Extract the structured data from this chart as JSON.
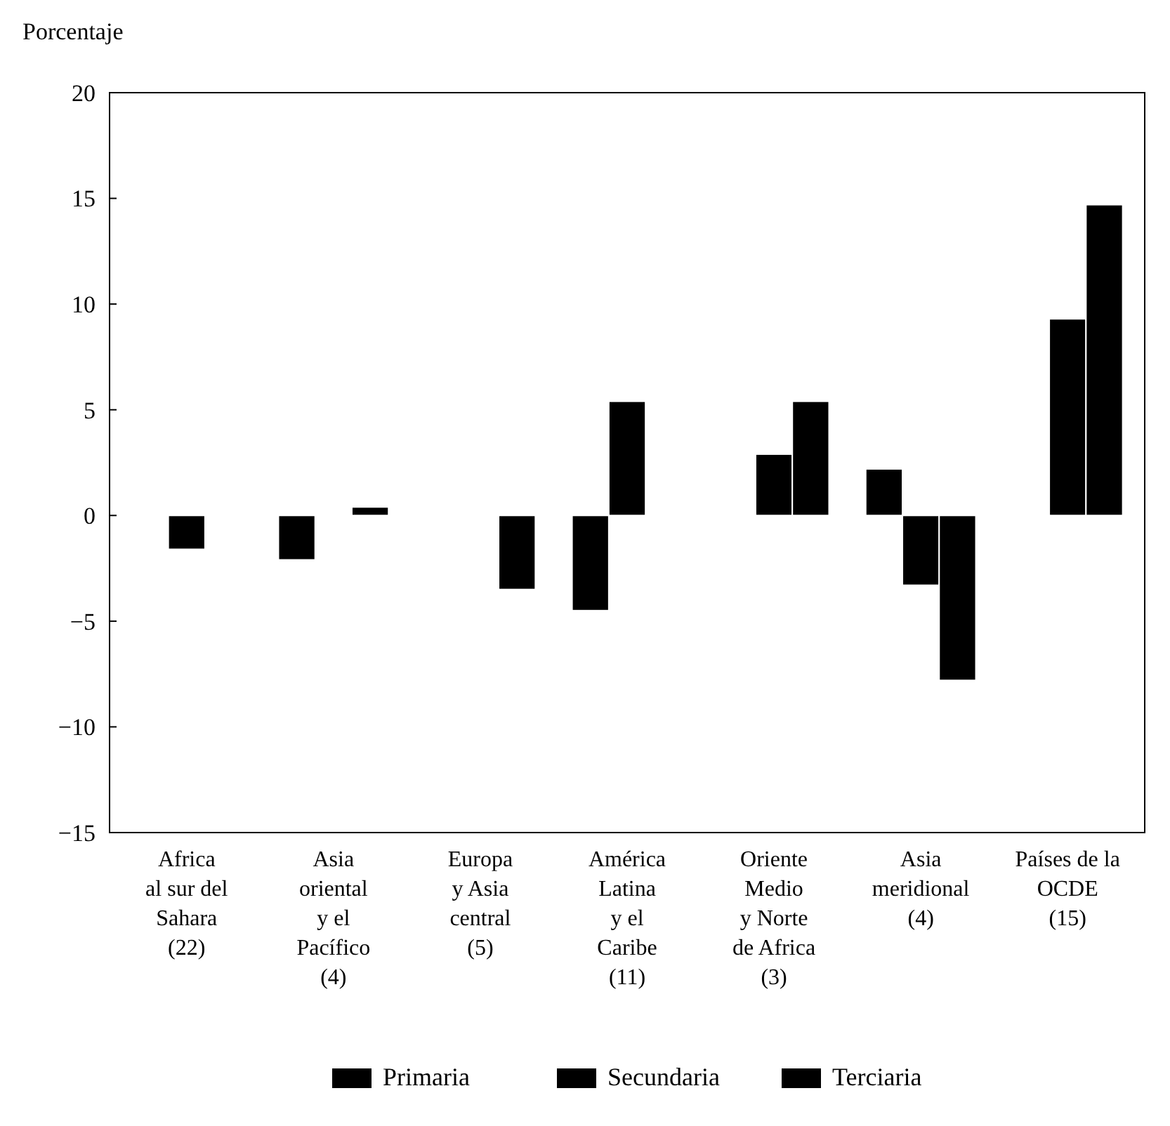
{
  "chart_data": {
    "type": "bar",
    "ylabel": "Porcentaje",
    "categories": [
      "Africa\nal sur del\nSahara\n(22)",
      "Asia\noriental\ny el\nPacífico\n(4)",
      "Europa\ny Asia\ncentral\n(5)",
      "América\nLatina\ny el\nCaribe\n(11)",
      "Oriente\nMedio\ny Norte\nde Africa\n(3)",
      "Asia\nmeridional\n(4)",
      "Países de la\nOCDE\n(15)"
    ],
    "series": [
      {
        "name": "Primaria",
        "color": "#000000",
        "values": [
          null,
          -2.1,
          null,
          -4.5,
          null,
          2.2,
          null
        ]
      },
      {
        "name": "Secundaria",
        "color": "#000000",
        "values": [
          -1.6,
          null,
          null,
          5.4,
          2.9,
          -3.3,
          9.3
        ]
      },
      {
        "name": "Terciaria",
        "color": "#000000",
        "values": [
          null,
          0.4,
          -3.5,
          null,
          5.4,
          -7.8,
          14.7
        ]
      }
    ],
    "ylim": [
      -15,
      20
    ],
    "yticks": [
      {
        "value": -15,
        "label": "−15"
      },
      {
        "value": -10,
        "label": "−10"
      },
      {
        "value": -5,
        "label": "−5"
      },
      0,
      5,
      10,
      15,
      20
    ],
    "grid": false,
    "legend": "bottom"
  }
}
